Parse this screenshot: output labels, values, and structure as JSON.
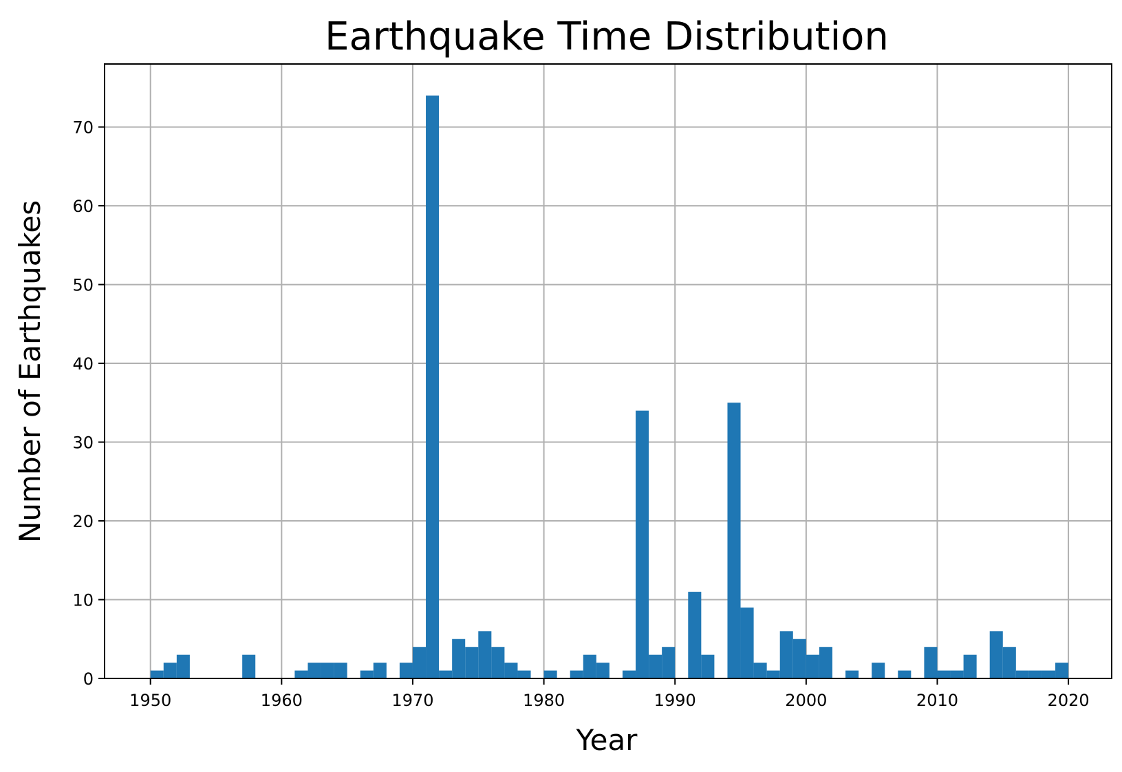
{
  "chart_data": {
    "type": "bar",
    "title": "Earthquake Time Distribution",
    "xlabel": "Year",
    "ylabel": "Number of Earthquakes",
    "xlim": [
      1946.5,
      2023.3
    ],
    "ylim": [
      0,
      78
    ],
    "xticks": [
      1950,
      1960,
      1970,
      1980,
      1990,
      2000,
      2010,
      2020
    ],
    "yticks": [
      0,
      10,
      20,
      30,
      40,
      50,
      60,
      70
    ],
    "bin_start": 1950,
    "bin_width": 1,
    "values": [
      1,
      2,
      3,
      0,
      0,
      0,
      0,
      3,
      0,
      0,
      0,
      1,
      2,
      2,
      2,
      0,
      1,
      2,
      0,
      2,
      4,
      74,
      1,
      5,
      4,
      6,
      4,
      2,
      1,
      0,
      1,
      0,
      1,
      3,
      2,
      0,
      1,
      34,
      3,
      4,
      0,
      11,
      3,
      0,
      35,
      9,
      2,
      1,
      6,
      5,
      3,
      4,
      0,
      1,
      0,
      2,
      0,
      1,
      0,
      4,
      1,
      1,
      3,
      0,
      6,
      4,
      1,
      1,
      1,
      2
    ],
    "grid": true,
    "bar_color": "#1f77b4"
  }
}
